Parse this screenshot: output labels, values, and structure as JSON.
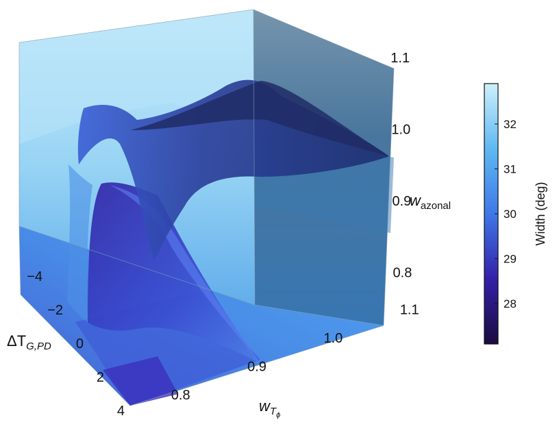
{
  "chart_data": {
    "type": "3d-isosurface",
    "axes": {
      "x": {
        "label_main": "ΔT",
        "label_sub": "G,PD",
        "range": [
          -4,
          4
        ],
        "ticks": [
          -4,
          -2,
          0,
          2,
          4
        ],
        "tick_labels": [
          "−4",
          "−2",
          "0",
          "2",
          "4"
        ]
      },
      "y": {
        "label_main": "w",
        "label_sub": "T",
        "label_subsub": "ϕ",
        "range": [
          0.75,
          1.12
        ],
        "ticks": [
          0.8,
          0.9,
          1.0,
          1.1
        ],
        "tick_labels": [
          "0.8",
          "0.9",
          "1.0",
          "1.1"
        ]
      },
      "z": {
        "label_main": "w",
        "label_sub": "azonal",
        "range": [
          0.75,
          1.12
        ],
        "ticks": [
          0.8,
          0.9,
          1.0,
          1.1
        ],
        "tick_labels": [
          "0.8",
          "0.9",
          "1.0",
          "1.1"
        ]
      }
    },
    "colorbar": {
      "label": "Width (deg)",
      "range": [
        27.1,
        32.9
      ],
      "ticks": [
        28,
        29,
        30,
        31,
        32
      ],
      "tick_labels": [
        "28",
        "29",
        "30",
        "31",
        "32"
      ],
      "colors": [
        "#1b0b3f",
        "#3420a8",
        "#3f78e8",
        "#5fb8f2",
        "#cdf0fb"
      ]
    }
  }
}
